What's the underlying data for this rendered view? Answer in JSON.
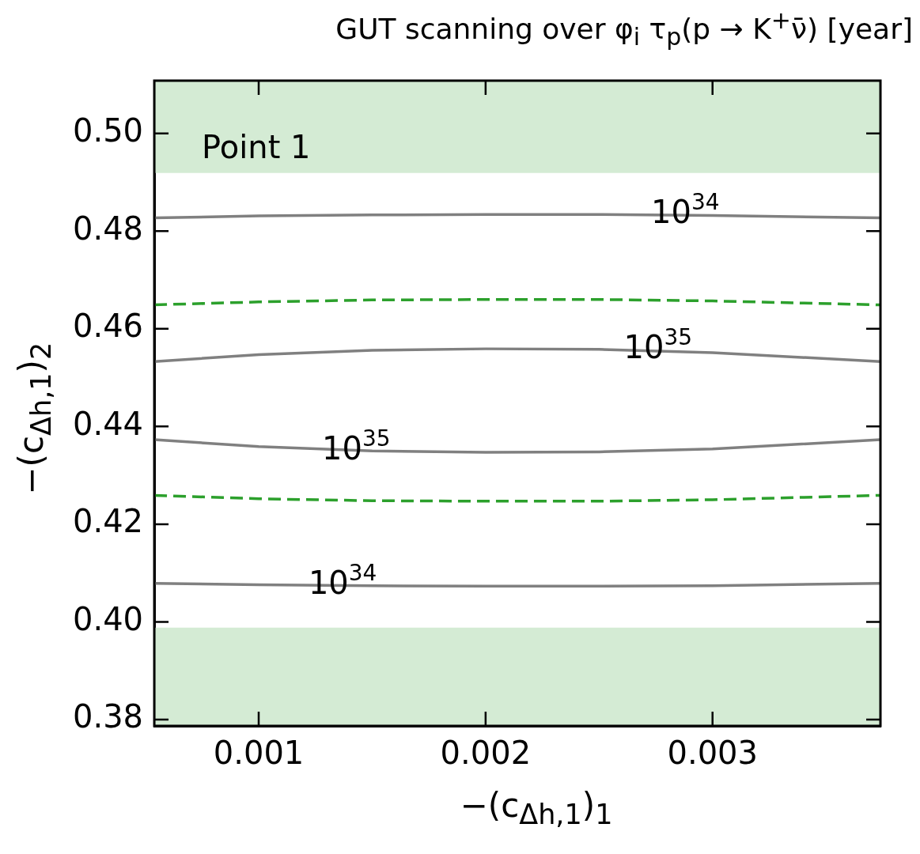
{
  "chart_data": {
    "type": "line",
    "title": "GUT scanning over φ$_{i}$  τ$_{p}$(p → K$^{+}$ν̄)  [year]",
    "xlabel": "−(c$_{Δh,1}$)$_{1}$",
    "ylabel": "−(c$_{Δh,1}$)$_{2}$",
    "xlim": [
      0.00054,
      0.00374
    ],
    "ylim": [
      0.3787,
      0.5108
    ],
    "xticks": [
      0.001,
      0.002,
      0.003
    ],
    "yticks": [
      {
        "value": 0.38,
        "label": "0.38"
      },
      {
        "value": 0.4,
        "label": "0.40"
      },
      {
        "value": 0.42,
        "label": "0.42"
      },
      {
        "value": 0.44,
        "label": "0.44"
      },
      {
        "value": 0.46,
        "label": "0.46"
      },
      {
        "value": 0.48,
        "label": "0.48"
      },
      {
        "value": 0.5,
        "label": "0.50"
      }
    ],
    "series": [
      {
        "color": "#808080",
        "line_style": "solid",
        "x": [
          0.00054,
          0.001,
          0.0015,
          0.002,
          0.0025,
          0.003,
          0.00374
        ],
        "values": [
          0.4827,
          0.4831,
          0.4833,
          0.4834,
          0.4834,
          0.4832,
          0.4827
        ]
      },
      {
        "color": "#2ca02c",
        "line_style": "dashed",
        "x": [
          0.00054,
          0.001,
          0.0015,
          0.002,
          0.0025,
          0.003,
          0.00374
        ],
        "values": [
          0.4649,
          0.4655,
          0.4659,
          0.466,
          0.466,
          0.4657,
          0.4649
        ]
      },
      {
        "color": "#808080",
        "line_style": "solid",
        "x": [
          0.00054,
          0.001,
          0.0015,
          0.002,
          0.0025,
          0.003,
          0.00374
        ],
        "values": [
          0.4533,
          0.4547,
          0.4556,
          0.4559,
          0.4558,
          0.4551,
          0.4533
        ]
      },
      {
        "color": "#808080",
        "line_style": "solid",
        "x": [
          0.00054,
          0.001,
          0.0015,
          0.002,
          0.0025,
          0.003,
          0.00374
        ],
        "values": [
          0.4373,
          0.4359,
          0.435,
          0.4347,
          0.4348,
          0.4354,
          0.4373
        ]
      },
      {
        "color": "#2ca02c",
        "line_style": "dashed",
        "x": [
          0.00054,
          0.001,
          0.0015,
          0.002,
          0.0025,
          0.003,
          0.00374
        ],
        "values": [
          0.4259,
          0.4252,
          0.4248,
          0.4247,
          0.4247,
          0.425,
          0.4259
        ]
      },
      {
        "color": "#808080",
        "line_style": "solid",
        "x": [
          0.00054,
          0.001,
          0.0015,
          0.002,
          0.0025,
          0.003,
          0.00374
        ],
        "values": [
          0.4079,
          0.4076,
          0.4074,
          0.4073,
          0.4073,
          0.4074,
          0.4079
        ]
      }
    ],
    "bands": [
      {
        "axis": "y",
        "from": 0.4919,
        "to": 0.5108,
        "color": "#d4ebd4"
      },
      {
        "axis": "y",
        "from": 0.3787,
        "to": 0.3988,
        "color": "#d4ebd4"
      }
    ],
    "annotations": [
      "Point 1",
      {
        "text": "10$^{34}$",
        "x": 0.00288,
        "y": 0.4833
      },
      {
        "text": "10$^{35}$",
        "x": 0.00276,
        "y": 0.4557
      },
      {
        "text": "10$^{35}$",
        "x": 0.00143,
        "y": 0.4349
      },
      {
        "text": "10$^{34}$",
        "x": 0.00137,
        "y": 0.4074
      }
    ]
  }
}
